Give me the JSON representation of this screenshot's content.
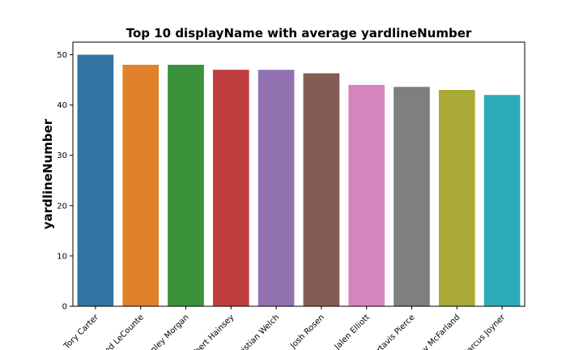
{
  "chart_data": {
    "type": "bar",
    "title": "Top 10 displayName with average yardlineNumber",
    "xlabel": "",
    "ylabel": "yardlineNumber",
    "categories": [
      "Tory Carter",
      "Jared LeCounte",
      "Stanley Morgan",
      "Robert Hainsey",
      "Christian Welch",
      "Josh Rosen",
      "Jalen Elliott",
      "Cortavis Pierce",
      "Tony McFarland",
      "Marcus Joyner"
    ],
    "values": [
      50,
      48,
      48,
      47,
      47,
      46.3,
      44,
      43.6,
      43,
      42
    ],
    "colors": [
      "#3274a1",
      "#e1812c",
      "#3a923a",
      "#c03d3e",
      "#9372b2",
      "#845b53",
      "#d684bd",
      "#7f7f7f",
      "#a9aa35",
      "#2eabb8"
    ],
    "ylim": [
      0,
      52.5
    ],
    "yticks": [
      0,
      10,
      20,
      30,
      40,
      50
    ],
    "grid": false,
    "legend": "none"
  }
}
